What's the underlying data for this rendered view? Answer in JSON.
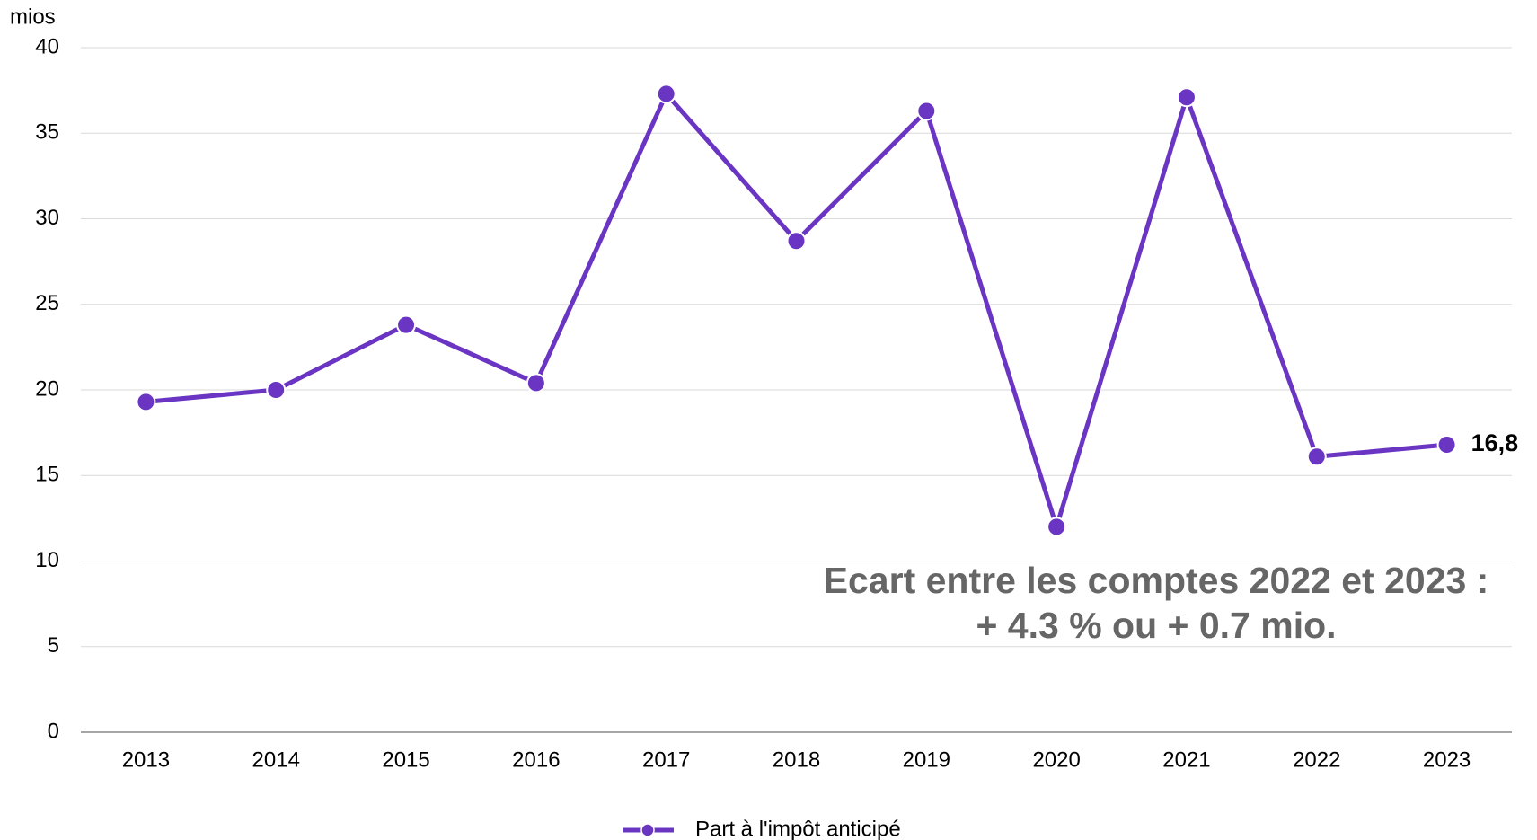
{
  "chart_data": {
    "type": "line",
    "y_unit_label": "mios",
    "categories": [
      "2013",
      "2014",
      "2015",
      "2016",
      "2017",
      "2018",
      "2019",
      "2020",
      "2021",
      "2022",
      "2023"
    ],
    "series": [
      {
        "name": "Part à l'impôt anticipé",
        "color": "#6a35c2",
        "values": [
          19.3,
          20.0,
          23.8,
          20.4,
          37.3,
          28.7,
          36.3,
          12.0,
          37.1,
          16.1,
          16.8
        ],
        "value_labels": [
          null,
          null,
          null,
          null,
          null,
          null,
          null,
          null,
          null,
          null,
          "16,8"
        ]
      }
    ],
    "ylim": [
      0,
      40
    ],
    "yticks": [
      0,
      5,
      10,
      15,
      20,
      25,
      30,
      35,
      40
    ],
    "grid": true,
    "annotation": [
      "Ecart entre les comptes 2022 et 2023 :",
      "+ 4.3 % ou + 0.7 mio."
    ],
    "legend": "bottom"
  }
}
